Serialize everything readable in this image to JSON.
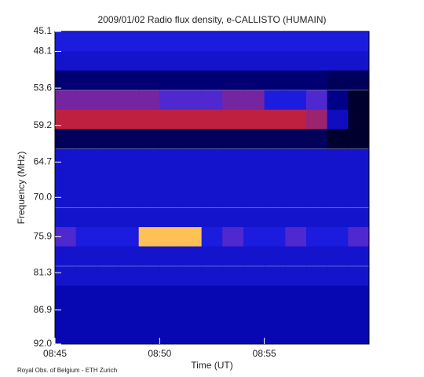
{
  "chart_data": {
    "type": "heatmap",
    "title": "2009/01/02  Radio flux density, e-CALLISTO (HUMAIN)",
    "x_label": "Time (UT)",
    "y_label": "Frequency (MHz)",
    "footer": "Royal Obs. of Belgium - ETH Zurich",
    "xlim": [
      "08:45",
      "09:00"
    ],
    "xticks": [
      "08:45",
      "08:50",
      "08:55"
    ],
    "ylim": [
      92,
      45.1
    ],
    "yticks": [
      45.1,
      48.1,
      53.6,
      59.2,
      64.7,
      {
        "value": 70,
        "label": "70.0"
      },
      75.9,
      81.3,
      86.9,
      {
        "value": 92,
        "label": "92.0"
      }
    ],
    "x": [
      "08:45",
      "08:46",
      "08:47",
      "08:48",
      "08:49",
      "08:50",
      "08:51",
      "08:52",
      "08:53",
      "08:54",
      "08:55",
      "08:56",
      "08:57",
      "08:58",
      "08:59"
    ],
    "y": [
      46.6,
      49.5,
      52.4,
      55.4,
      58.3,
      61.2,
      64.2,
      67.1,
      70.0,
      73.0,
      75.9,
      78.8,
      81.8,
      84.7,
      87.6,
      90.5
    ],
    "colorscale": [
      [
        0,
        "#000000"
      ],
      [
        35,
        "#0000a0"
      ],
      [
        50,
        "#2a2aff"
      ],
      [
        70,
        "#c02040"
      ],
      [
        85,
        "#ffa000"
      ],
      [
        100,
        "#ffffff"
      ]
    ],
    "z": [
      [
        45,
        45,
        45,
        45,
        45,
        45,
        45,
        45,
        45,
        45,
        45,
        45,
        45,
        45,
        45
      ],
      [
        42,
        42,
        42,
        42,
        42,
        42,
        42,
        42,
        42,
        42,
        42,
        42,
        42,
        42,
        42
      ],
      [
        25,
        25,
        25,
        25,
        25,
        25,
        25,
        25,
        25,
        25,
        25,
        25,
        25,
        20,
        20
      ],
      [
        60,
        60,
        60,
        60,
        60,
        55,
        55,
        55,
        60,
        60,
        45,
        45,
        55,
        30,
        10
      ],
      [
        70,
        70,
        70,
        70,
        70,
        70,
        70,
        70,
        70,
        70,
        70,
        70,
        65,
        40,
        10
      ],
      [
        20,
        20,
        20,
        20,
        20,
        20,
        20,
        20,
        20,
        20,
        20,
        20,
        20,
        10,
        10
      ],
      [
        42,
        42,
        42,
        42,
        42,
        42,
        42,
        42,
        42,
        42,
        42,
        42,
        42,
        42,
        42
      ],
      [
        42,
        42,
        42,
        42,
        42,
        42,
        42,
        42,
        42,
        42,
        42,
        42,
        42,
        42,
        42
      ],
      [
        42,
        42,
        42,
        42,
        42,
        42,
        42,
        42,
        42,
        42,
        42,
        42,
        42,
        42,
        42
      ],
      [
        42,
        42,
        42,
        42,
        42,
        42,
        42,
        42,
        42,
        42,
        42,
        42,
        42,
        42,
        42
      ],
      [
        55,
        45,
        45,
        45,
        90,
        90,
        90,
        45,
        55,
        45,
        45,
        55,
        45,
        45,
        55
      ],
      [
        42,
        42,
        42,
        42,
        42,
        42,
        42,
        42,
        42,
        42,
        42,
        42,
        42,
        42,
        42
      ],
      [
        42,
        42,
        42,
        42,
        42,
        42,
        42,
        42,
        42,
        42,
        42,
        42,
        42,
        42,
        42
      ],
      [
        38,
        38,
        38,
        38,
        38,
        38,
        38,
        38,
        38,
        38,
        38,
        38,
        38,
        38,
        38
      ],
      [
        38,
        38,
        38,
        38,
        38,
        38,
        38,
        38,
        38,
        38,
        38,
        38,
        38,
        38,
        38
      ],
      [
        38,
        38,
        38,
        38,
        38,
        38,
        38,
        38,
        38,
        38,
        38,
        38,
        38,
        38,
        38
      ]
    ]
  }
}
